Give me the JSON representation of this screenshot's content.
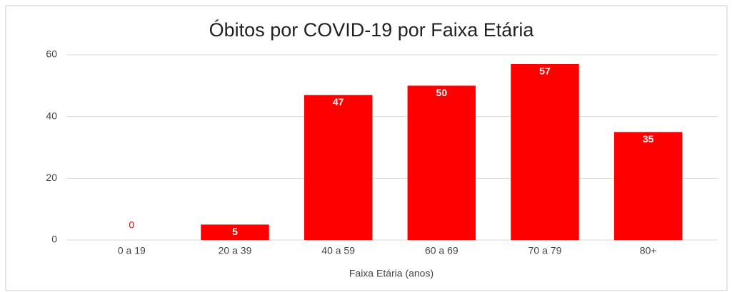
{
  "chart_data": {
    "type": "bar",
    "title": "Óbitos por COVID-19 por Faixa Etária",
    "categories": [
      "0 a 19",
      "20 a 39",
      "40 a 59",
      "60 a 69",
      "70 a 79",
      "80+"
    ],
    "values": [
      0,
      5,
      47,
      50,
      57,
      35
    ],
    "color": "#ff0000",
    "x_label": "Faixa Etária (anos)",
    "ylim": [
      0,
      60
    ],
    "yticks": [
      0,
      20,
      40,
      60
    ],
    "grid": true
  }
}
